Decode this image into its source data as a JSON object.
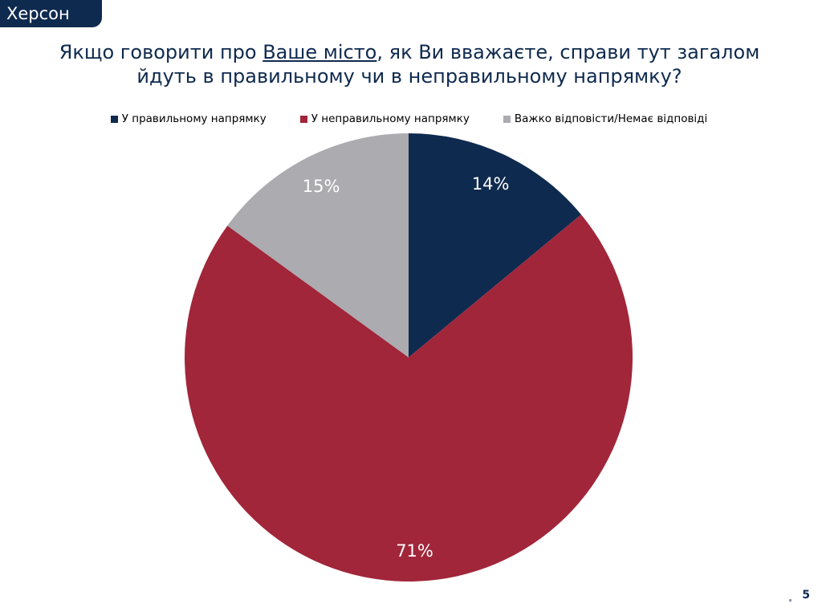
{
  "header": {
    "city": "Херсон"
  },
  "title": {
    "before": "Якщо говорити про ",
    "underlined": "Ваше місто",
    "after": ", як Ви вважаєте, справи тут загалом",
    "line2": "йдуть в правильному чи в неправильному напрямку?"
  },
  "colors": {
    "navy": "#0f2a4f",
    "crimson": "#a1263a",
    "gray": "#acabb0"
  },
  "chart_data": {
    "type": "pie",
    "slices": [
      {
        "name": "У правильному напрямку",
        "value": 14,
        "label": "14%",
        "color": "#0f2a4f"
      },
      {
        "name": "У неправильному напрямку",
        "value": 71,
        "label": "71%",
        "color": "#a1263a"
      },
      {
        "name": "Важко відповісти/Немає відповіді",
        "value": 15,
        "label": "15%",
        "color": "#acabb0"
      }
    ],
    "legend_position": "top"
  },
  "footer": {
    "page_number": "5"
  }
}
